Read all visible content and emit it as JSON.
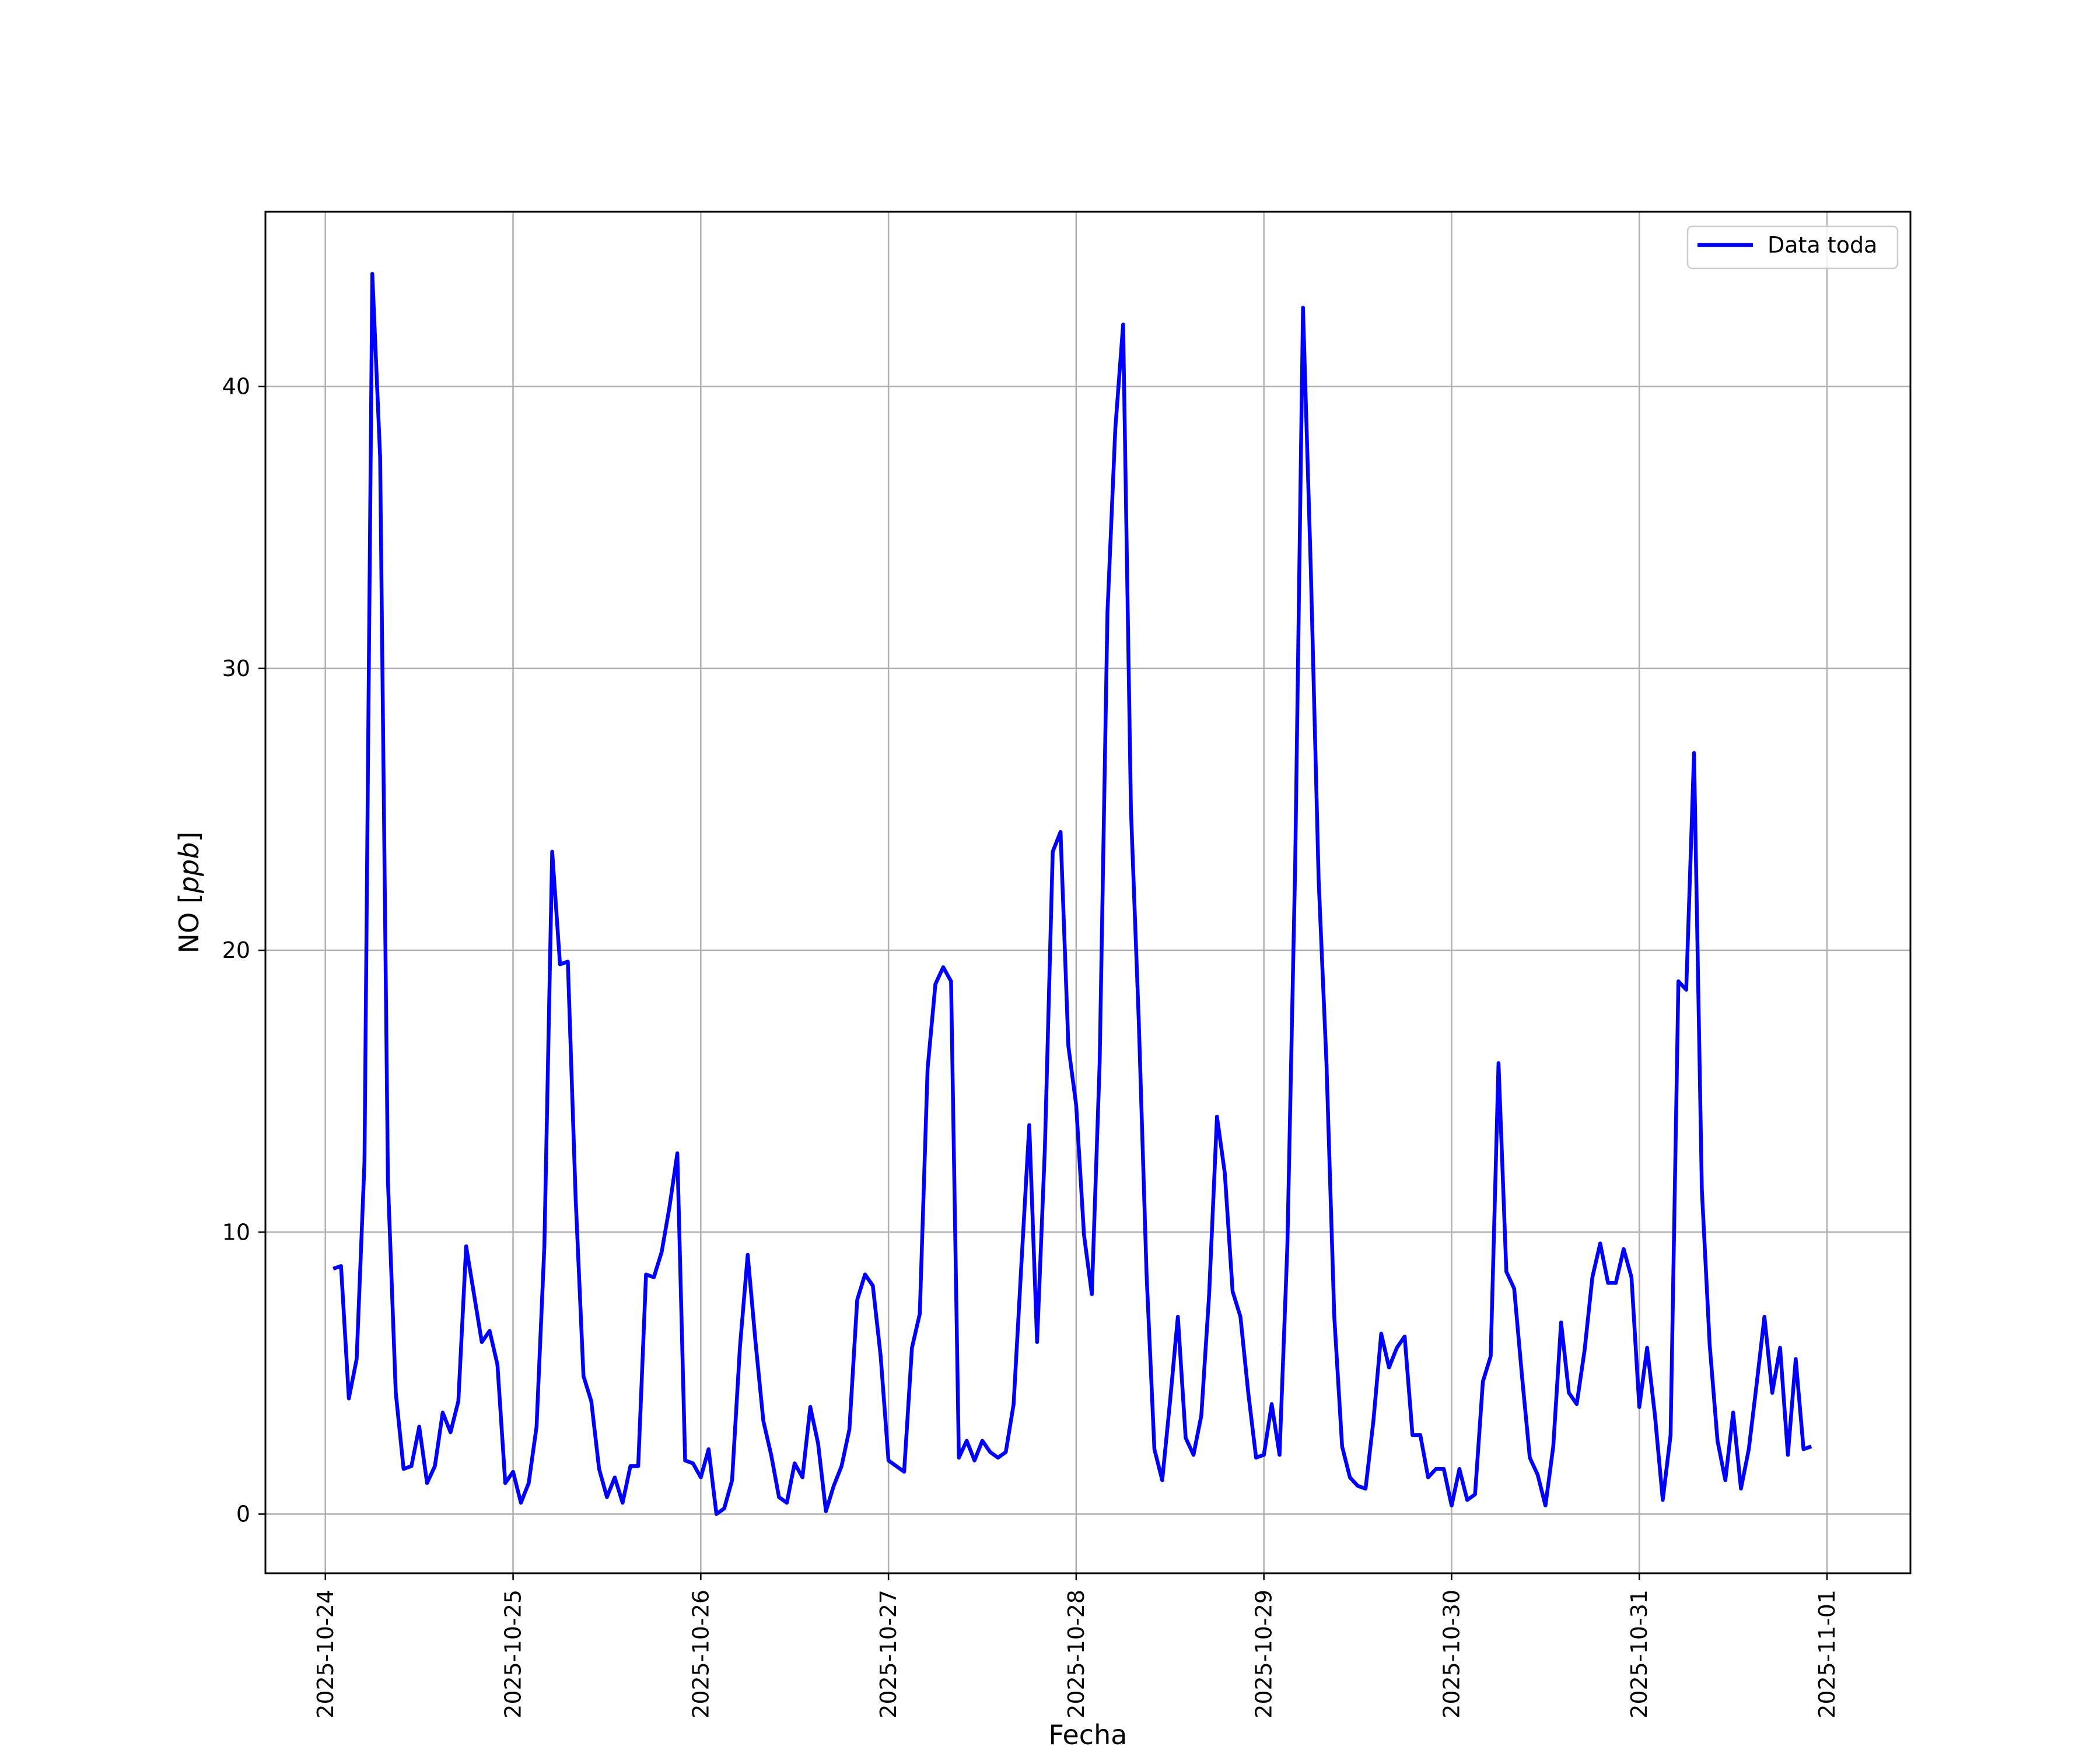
{
  "chart_data": {
    "type": "line",
    "title": "",
    "xlabel": "Fecha",
    "ylabel_text": "NO [",
    "ylabel_unit": "ppb",
    "ylabel_close": "]",
    "x_unit": "date",
    "xlim": [
      "2025-10-23T16:20",
      "2025-11-01T10:40"
    ],
    "ylim": [
      -2.1,
      46.2
    ],
    "x_ticks": [
      "2025-10-24",
      "2025-10-25",
      "2025-10-26",
      "2025-10-27",
      "2025-10-28",
      "2025-10-29",
      "2025-10-30",
      "2025-10-31",
      "2025-11-01"
    ],
    "y_ticks": [
      0,
      10,
      20,
      30,
      40
    ],
    "grid": true,
    "legend": {
      "position": "top-right",
      "entries": [
        "Data toda"
      ]
    },
    "series": [
      {
        "name": "Data toda",
        "color": "#0000ff",
        "start": "2025-10-24T01:00",
        "interval_hours": 1,
        "values": [
          8.7,
          8.8,
          4.1,
          5.5,
          12.5,
          44.0,
          37.5,
          11.8,
          4.3,
          1.6,
          1.7,
          3.1,
          1.1,
          1.7,
          3.6,
          2.9,
          4.0,
          9.5,
          7.8,
          6.1,
          6.5,
          5.3,
          1.1,
          1.5,
          0.4,
          1.1,
          3.1,
          9.5,
          23.5,
          19.5,
          19.6,
          11.2,
          4.9,
          4.0,
          1.6,
          0.6,
          1.3,
          0.4,
          1.7,
          1.7,
          8.5,
          8.4,
          9.3,
          10.9,
          12.8,
          1.9,
          1.8,
          1.3,
          2.3,
          0.0,
          0.2,
          1.2,
          5.9,
          9.2,
          6.1,
          3.3,
          2.1,
          0.6,
          0.4,
          1.8,
          1.3,
          3.8,
          2.5,
          0.1,
          1.0,
          1.7,
          3.0,
          7.6,
          8.5,
          8.1,
          5.6,
          1.9,
          1.7,
          1.5,
          5.9,
          7.1,
          15.8,
          18.8,
          19.4,
          18.9,
          2.0,
          2.6,
          1.9,
          2.6,
          2.2,
          2.0,
          2.2,
          3.9,
          8.9,
          13.8,
          6.1,
          13.0,
          23.5,
          24.2,
          16.6,
          14.5,
          9.9,
          7.8,
          16.0,
          32.0,
          38.5,
          42.2,
          25.0,
          17.5,
          8.5,
          2.3,
          1.2,
          4.0,
          7.0,
          2.7,
          2.1,
          3.5,
          7.8,
          14.1,
          12.1,
          7.9,
          7.0,
          4.3,
          2.0,
          2.1,
          3.9,
          2.1,
          9.5,
          23.0,
          42.8,
          33.5,
          22.5,
          16.0,
          7.0,
          2.4,
          1.3,
          1.0,
          0.9,
          3.3,
          6.4,
          5.2,
          5.9,
          6.3,
          2.8,
          2.8,
          1.3,
          1.6,
          1.6,
          0.3,
          1.6,
          0.5,
          0.7,
          4.7,
          5.6,
          16.0,
          8.6,
          8.0,
          4.9,
          2.0,
          1.4,
          0.3,
          2.4,
          6.8,
          4.3,
          3.9,
          5.8,
          8.4,
          9.6,
          8.2,
          8.2,
          9.4,
          8.4,
          3.8,
          5.9,
          3.5,
          0.5,
          2.8,
          18.9,
          18.6,
          27.0,
          11.5,
          6.0,
          2.6,
          1.2,
          3.6,
          0.9,
          2.3,
          4.6,
          7.0,
          4.3,
          5.9,
          2.1,
          5.5,
          2.3,
          2.4
        ]
      }
    ]
  }
}
